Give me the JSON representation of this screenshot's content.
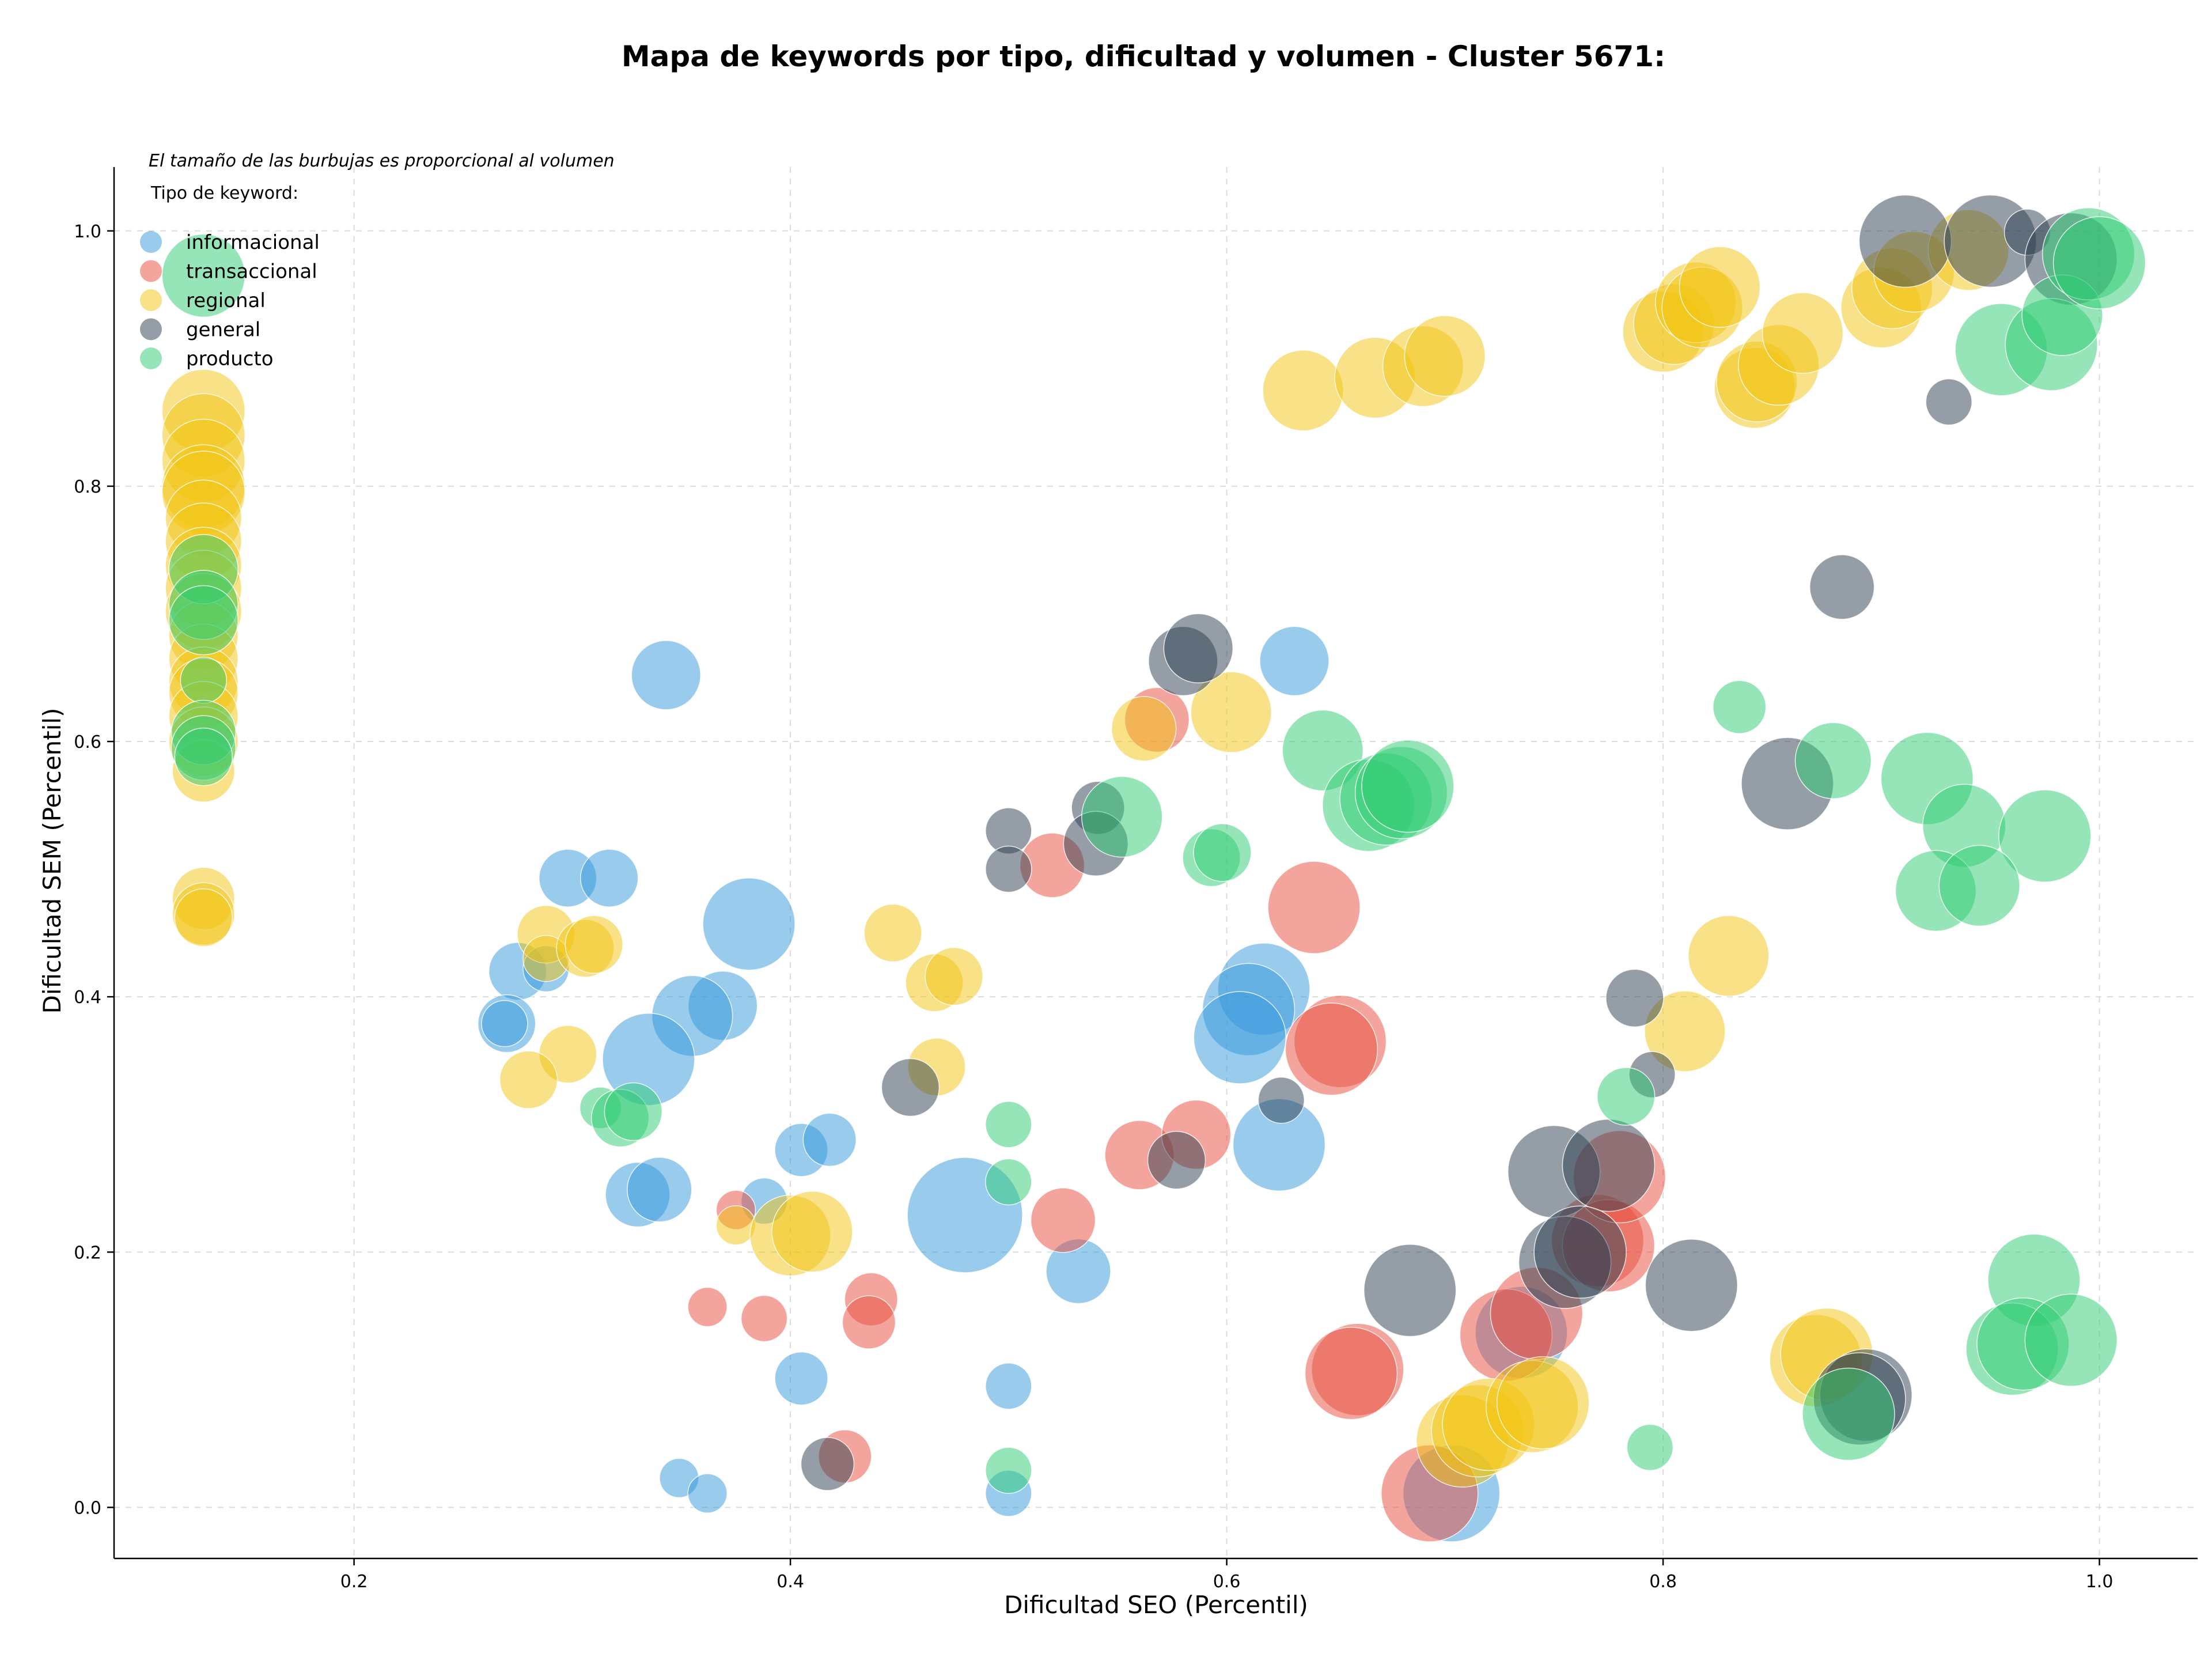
{
  "chart_data": {
    "type": "scatter",
    "title": "Mapa de keywords por tipo, dificultad y volumen - Cluster 5671:",
    "xlabel": "Dificultad SEO (Percentil)",
    "ylabel": "Dificultad SEM (Percentil)",
    "note": "El tamaño de las burbujas es proporcional al volumen",
    "legend_title": "Tipo de keyword:",
    "legend_position": "top-left",
    "grid": true,
    "xlim": [
      0.09,
      1.045
    ],
    "ylim": [
      -0.04,
      1.05
    ],
    "xticks": [
      0.2,
      0.4,
      0.6,
      0.8,
      1.0
    ],
    "yticks": [
      0.0,
      0.2,
      0.4,
      0.6,
      0.8,
      1.0
    ],
    "xtick_labels": [
      "0.2",
      "0.4",
      "0.6",
      "0.8",
      "1.0"
    ],
    "ytick_labels": [
      "0.0",
      "0.2",
      "0.4",
      "0.6",
      "0.8",
      "1.0"
    ],
    "series": [
      {
        "name": "informacional",
        "color": "#3498db",
        "points": [
          [
            0.343,
            0.652,
            3
          ],
          [
            0.298,
            0.493,
            2.5
          ],
          [
            0.317,
            0.493,
            2.5
          ],
          [
            0.381,
            0.457,
            4
          ],
          [
            0.275,
            0.42,
            2.5
          ],
          [
            0.288,
            0.422,
            2
          ],
          [
            0.27,
            0.379,
            2.5
          ],
          [
            0.269,
            0.379,
            2
          ],
          [
            0.369,
            0.393,
            3
          ],
          [
            0.355,
            0.385,
            3.5
          ],
          [
            0.335,
            0.351,
            4
          ],
          [
            0.33,
            0.245,
            2.8
          ],
          [
            0.34,
            0.249,
            2.8
          ],
          [
            0.405,
            0.28,
            2.3
          ],
          [
            0.418,
            0.288,
            2.3
          ],
          [
            0.388,
            0.24,
            2
          ],
          [
            0.48,
            0.229,
            5
          ],
          [
            0.532,
            0.185,
            2.8
          ],
          [
            0.405,
            0.101,
            2.3
          ],
          [
            0.5,
            0.095,
            2
          ],
          [
            0.349,
            0.023,
            1.7
          ],
          [
            0.362,
            0.011,
            1.7
          ],
          [
            0.5,
            0.011,
            2
          ],
          [
            0.631,
            0.663,
            3
          ],
          [
            0.617,
            0.406,
            4
          ],
          [
            0.61,
            0.39,
            4
          ],
          [
            0.606,
            0.368,
            4
          ],
          [
            0.624,
            0.284,
            4
          ],
          [
            0.703,
            0.011,
            4.2
          ],
          [
            0.735,
            0.137,
            4
          ]
        ]
      },
      {
        "name": "transaccional",
        "color": "#e74c3c",
        "points": [
          [
            0.568,
            0.617,
            2.8
          ],
          [
            0.52,
            0.503,
            2.8
          ],
          [
            0.64,
            0.47,
            4
          ],
          [
            0.652,
            0.365,
            4
          ],
          [
            0.648,
            0.359,
            4
          ],
          [
            0.56,
            0.276,
            3
          ],
          [
            0.586,
            0.292,
            3
          ],
          [
            0.525,
            0.225,
            2.8
          ],
          [
            0.375,
            0.233,
            1.7
          ],
          [
            0.362,
            0.157,
            1.7
          ],
          [
            0.388,
            0.148,
            2
          ],
          [
            0.437,
            0.163,
            2.3
          ],
          [
            0.436,
            0.145,
            2.3
          ],
          [
            0.425,
            0.04,
            2.3
          ],
          [
            0.66,
            0.108,
            4
          ],
          [
            0.657,
            0.105,
            4
          ],
          [
            0.693,
            0.011,
            4.2
          ],
          [
            0.728,
            0.135,
            4
          ],
          [
            0.742,
            0.152,
            4
          ],
          [
            0.77,
            0.209,
            4
          ],
          [
            0.775,
            0.205,
            4
          ],
          [
            0.78,
            0.259,
            4
          ]
        ]
      },
      {
        "name": "regional",
        "color": "#f1c40f",
        "points": [
          [
            0.131,
            0.859,
            3.6
          ],
          [
            0.131,
            0.84,
            3.6
          ],
          [
            0.131,
            0.82,
            3.6
          ],
          [
            0.131,
            0.8,
            3.6
          ],
          [
            0.131,
            0.795,
            3.6
          ],
          [
            0.131,
            0.775,
            3.3
          ],
          [
            0.131,
            0.757,
            3.3
          ],
          [
            0.131,
            0.738,
            3.3
          ],
          [
            0.131,
            0.72,
            3.3
          ],
          [
            0.131,
            0.702,
            3.3
          ],
          [
            0.131,
            0.683,
            3
          ],
          [
            0.131,
            0.665,
            3
          ],
          [
            0.131,
            0.647,
            3
          ],
          [
            0.131,
            0.638,
            3
          ],
          [
            0.131,
            0.62,
            3
          ],
          [
            0.131,
            0.6,
            3
          ],
          [
            0.131,
            0.577,
            2.7
          ],
          [
            0.131,
            0.477,
            2.7
          ],
          [
            0.131,
            0.465,
            2.7
          ],
          [
            0.131,
            0.462,
            2.5
          ],
          [
            0.288,
            0.449,
            2.5
          ],
          [
            0.288,
            0.43,
            2
          ],
          [
            0.306,
            0.438,
            2.5
          ],
          [
            0.31,
            0.441,
            2.5
          ],
          [
            0.298,
            0.355,
            2.5
          ],
          [
            0.28,
            0.335,
            2.5
          ],
          [
            0.447,
            0.45,
            2.5
          ],
          [
            0.466,
            0.411,
            2.5
          ],
          [
            0.475,
            0.416,
            2.5
          ],
          [
            0.467,
            0.345,
            2.5
          ],
          [
            0.375,
            0.221,
            1.7
          ],
          [
            0.4,
            0.213,
            3.5
          ],
          [
            0.41,
            0.216,
            3.5
          ],
          [
            0.562,
            0.61,
            2.8
          ],
          [
            0.602,
            0.623,
            3.5
          ],
          [
            0.635,
            0.875,
            3.5
          ],
          [
            0.668,
            0.885,
            3.5
          ],
          [
            0.69,
            0.894,
            3.5
          ],
          [
            0.7,
            0.902,
            3.5
          ],
          [
            0.8,
            0.921,
            3.5
          ],
          [
            0.805,
            0.927,
            3.5
          ],
          [
            0.815,
            0.944,
            3.5
          ],
          [
            0.818,
            0.94,
            3.5
          ],
          [
            0.826,
            0.956,
            3.5
          ],
          [
            0.842,
            0.877,
            3.5
          ],
          [
            0.843,
            0.882,
            3.5
          ],
          [
            0.853,
            0.895,
            3.5
          ],
          [
            0.864,
            0.92,
            3.5
          ],
          [
            0.9,
            0.94,
            3.5
          ],
          [
            0.905,
            0.955,
            3.5
          ],
          [
            0.915,
            0.968,
            3.5
          ],
          [
            0.94,
            0.985,
            3.5
          ],
          [
            0.83,
            0.432,
            3.5
          ],
          [
            0.81,
            0.373,
            3.5
          ],
          [
            0.708,
            0.052,
            4
          ],
          [
            0.715,
            0.06,
            4
          ],
          [
            0.72,
            0.065,
            4
          ],
          [
            0.74,
            0.079,
            4
          ],
          [
            0.745,
            0.082,
            4
          ],
          [
            0.87,
            0.115,
            4
          ],
          [
            0.875,
            0.12,
            4
          ]
        ]
      },
      {
        "name": "general",
        "color": "#2c3e50",
        "points": [
          [
            0.58,
            0.663,
            3
          ],
          [
            0.587,
            0.673,
            3
          ],
          [
            0.541,
            0.548,
            2.3
          ],
          [
            0.54,
            0.52,
            2.8
          ],
          [
            0.5,
            0.53,
            2
          ],
          [
            0.5,
            0.5,
            2
          ],
          [
            0.455,
            0.329,
            2.5
          ],
          [
            0.577,
            0.272,
            2.5
          ],
          [
            0.625,
            0.319,
            2
          ],
          [
            0.417,
            0.034,
            2.3
          ],
          [
            0.684,
            0.17,
            4
          ],
          [
            0.75,
            0.263,
            4
          ],
          [
            0.775,
            0.268,
            4
          ],
          [
            0.755,
            0.192,
            4
          ],
          [
            0.762,
            0.2,
            4
          ],
          [
            0.813,
            0.174,
            4
          ],
          [
            0.787,
            0.399,
            2.5
          ],
          [
            0.795,
            0.339,
            2
          ],
          [
            0.857,
            0.567,
            4
          ],
          [
            0.882,
            0.721,
            2.8
          ],
          [
            0.931,
            0.866,
            2
          ],
          [
            0.911,
            0.992,
            4
          ],
          [
            0.95,
            0.992,
            4
          ],
          [
            0.967,
            0.999,
            2
          ],
          [
            0.987,
            0.978,
            4
          ],
          [
            0.893,
            0.088,
            4
          ],
          [
            0.89,
            0.085,
            4
          ]
        ]
      },
      {
        "name": "producto",
        "color": "#2ecc71",
        "points": [
          [
            0.131,
            0.965,
            3.6
          ],
          [
            0.131,
            0.735,
            3
          ],
          [
            0.131,
            0.707,
            3
          ],
          [
            0.131,
            0.695,
            3
          ],
          [
            0.131,
            0.648,
            2
          ],
          [
            0.131,
            0.607,
            2.8
          ],
          [
            0.131,
            0.595,
            2.8
          ],
          [
            0.131,
            0.588,
            2.5
          ],
          [
            0.313,
            0.313,
            1.8
          ],
          [
            0.322,
            0.305,
            2.5
          ],
          [
            0.328,
            0.31,
            2.5
          ],
          [
            0.5,
            0.3,
            2
          ],
          [
            0.5,
            0.255,
            2
          ],
          [
            0.5,
            0.029,
            2
          ],
          [
            0.552,
            0.541,
            3.5
          ],
          [
            0.593,
            0.509,
            2.5
          ],
          [
            0.598,
            0.513,
            2.5
          ],
          [
            0.644,
            0.593,
            3.5
          ],
          [
            0.665,
            0.55,
            4
          ],
          [
            0.673,
            0.555,
            4
          ],
          [
            0.68,
            0.56,
            4
          ],
          [
            0.683,
            0.565,
            4
          ],
          [
            0.783,
            0.322,
            2.5
          ],
          [
            0.794,
            0.047,
            2
          ],
          [
            0.835,
            0.627,
            2.3
          ],
          [
            0.878,
            0.585,
            3.3
          ],
          [
            0.921,
            0.571,
            4
          ],
          [
            0.938,
            0.534,
            3.6
          ],
          [
            0.975,
            0.526,
            4
          ],
          [
            0.925,
            0.483,
            3.5
          ],
          [
            0.945,
            0.487,
            3.5
          ],
          [
            0.955,
            0.907,
            4
          ],
          [
            0.978,
            0.911,
            4
          ],
          [
            0.983,
            0.934,
            3.5
          ],
          [
            0.995,
            0.982,
            4
          ],
          [
            1.0,
            0.975,
            4
          ],
          [
            0.97,
            0.178,
            4
          ],
          [
            0.96,
            0.124,
            4
          ],
          [
            0.965,
            0.128,
            4
          ],
          [
            0.987,
            0.131,
            4
          ],
          [
            0.885,
            0.073,
            4
          ]
        ]
      }
    ]
  }
}
